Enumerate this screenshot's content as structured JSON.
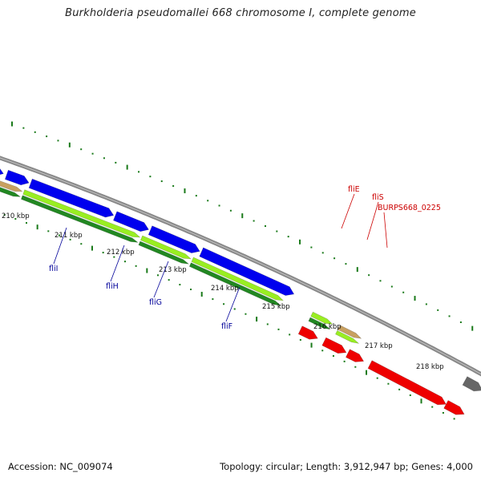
{
  "title": "Burkholderia pseudomallei 668 chromosome I, complete genome",
  "footer": {
    "accession": "Accession: NC_009074",
    "summary": "Topology: circular; Length: 3,912,947 bp; Genes: 4,000"
  },
  "colors": {
    "backbone": "#888888",
    "tick": "#1a7a1a",
    "forward_cds": "#0000ee",
    "reverse_cds": "#ee0000",
    "gene_light": "#99ee22",
    "gene_dark": "#228822",
    "gene_tan": "#c8a060",
    "other": "#666666",
    "label_blue": "#000099",
    "label_red": "#cc0000"
  },
  "kbp_labels": [
    "210 kbp",
    "211 kbp",
    "212 kbp",
    "213 kbp",
    "214 kbp",
    "215 kbp",
    "216 kbp",
    "217 kbp",
    "218 kbp"
  ],
  "gene_labels_lower": [
    "fliI",
    "fliH",
    "fliG",
    "fliF"
  ],
  "gene_labels_upper": [
    "fliE",
    "fliS",
    "BURPS668_0225"
  ]
}
